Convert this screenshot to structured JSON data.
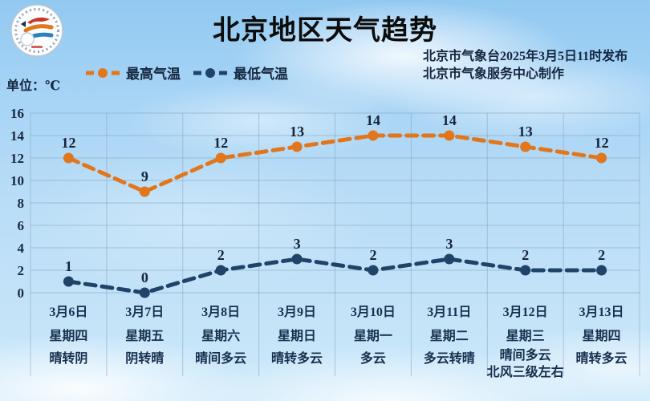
{
  "header": {
    "title": "北京地区天气趋势",
    "issue_line": "北京市气象台2025年3月5日11时发布",
    "producer_line": "北京市气象服务中心制作",
    "logo": "beijing-meteorological-service-badge"
  },
  "chart_data": {
    "type": "line",
    "title": "北京地区天气趋势",
    "unit_label": "单位：℃",
    "ylabel": "℃",
    "ylim": [
      0,
      16
    ],
    "ytick_step": 2,
    "grid": true,
    "legend_position": "top-left",
    "line_style": "dashed-with-dot-markers",
    "categories": [
      {
        "date": "3月6日",
        "weekday": "星期四",
        "weather": [
          "晴转阴"
        ]
      },
      {
        "date": "3月7日",
        "weekday": "星期五",
        "weather": [
          "阴转晴"
        ]
      },
      {
        "date": "3月8日",
        "weekday": "星期六",
        "weather": [
          "晴间多云"
        ]
      },
      {
        "date": "3月9日",
        "weekday": "星期日",
        "weather": [
          "晴转多云"
        ]
      },
      {
        "date": "3月10日",
        "weekday": "星期一",
        "weather": [
          "多云"
        ]
      },
      {
        "date": "3月11日",
        "weekday": "星期二",
        "weather": [
          "多云转晴"
        ]
      },
      {
        "date": "3月12日",
        "weekday": "星期三",
        "weather": [
          "晴间多云",
          "北风三级左右"
        ]
      },
      {
        "date": "3月13日",
        "weekday": "星期四",
        "weather": [
          "晴转多云"
        ]
      }
    ],
    "series": [
      {
        "name": "最高气温",
        "color": "#e2761c",
        "values": [
          12,
          9,
          12,
          13,
          14,
          14,
          13,
          12
        ]
      },
      {
        "name": "最低气温",
        "color": "#20436a",
        "values": [
          1,
          0,
          2,
          3,
          2,
          3,
          2,
          2
        ]
      }
    ],
    "colors": {
      "text": "#152740",
      "gridline": "#87a2bb",
      "title": "#0c0c0c",
      "sky_top": "#92c9f1",
      "sky_bottom": "#cde9fa"
    }
  }
}
